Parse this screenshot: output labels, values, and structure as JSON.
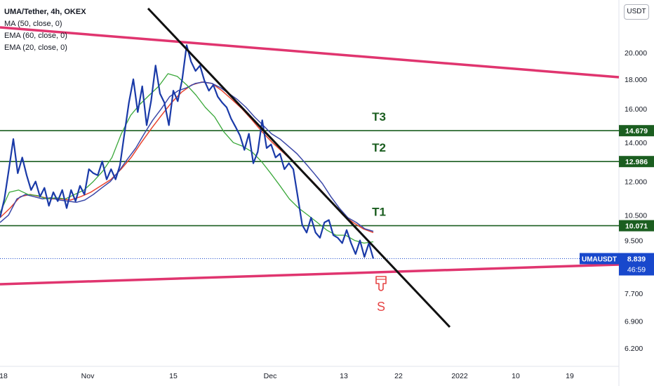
{
  "legend": {
    "title": "UMA/Tether, 4h, OKEX",
    "ma50": "MA (50, close, 0)",
    "ema60": "EMA (60, close, 0)",
    "ema20": "EMA (20, close, 0)"
  },
  "unit_badge": "USDT",
  "colors": {
    "price": "#1a3aa8",
    "ma50": "#3b48a8",
    "ema60": "#e8432e",
    "ema20": "#3aa83a",
    "channel": "#e0356f",
    "trendline": "#111111",
    "target_line": "#1b5e20",
    "target_label_bg": "#1b5e20",
    "current_label_bg": "#1848cc",
    "signal_red": "#e64545"
  },
  "chart_data": {
    "type": "line",
    "title": "UMA/Tether, 4h, OKEX",
    "y_scale": "log",
    "ylim": [
      5.55,
      24.0
    ],
    "y_ticks": [
      20.0,
      18.0,
      16.0,
      14.0,
      12.0,
      10.5,
      9.5,
      7.7,
      6.9,
      6.2
    ],
    "y_tick_labels": [
      "20.000",
      "18.000",
      "16.000",
      "14.000",
      "12.000",
      "10.500",
      "9.500",
      "7.700",
      "6.900",
      "6.200"
    ],
    "x_tick_labels": [
      "18",
      "Nov",
      "15",
      "Dec",
      "13",
      "22",
      "2022",
      "10",
      "19"
    ],
    "price_series": {
      "name": "UMAUSDT",
      "values": [
        10.4,
        11.2,
        12.6,
        14.2,
        12.4,
        13.2,
        12.3,
        11.6,
        12.0,
        11.3,
        11.7,
        10.9,
        11.5,
        11.1,
        11.6,
        10.8,
        11.6,
        11.1,
        11.8,
        11.4,
        12.6,
        12.4,
        12.3,
        13.0,
        12.1,
        12.6,
        12.1,
        12.8,
        14.5,
        16.4,
        18.0,
        15.8,
        17.5,
        15.0,
        16.5,
        19.0,
        17.0,
        16.4,
        15.0,
        17.2,
        16.5,
        18.0,
        20.6,
        19.3,
        18.6,
        19.0,
        17.9,
        17.2,
        17.6,
        16.8,
        16.4,
        16.1,
        15.4,
        14.9,
        14.4,
        13.6,
        14.5,
        12.9,
        13.5,
        15.3,
        13.7,
        13.9,
        13.2,
        13.4,
        12.6,
        12.9,
        12.6,
        11.3,
        10.1,
        9.8,
        10.4,
        9.8,
        9.6,
        10.2,
        10.3,
        9.7,
        9.6,
        9.4,
        9.9,
        9.4,
        9.0,
        9.5,
        8.9,
        9.4,
        8.84
      ],
      "last": 8.839
    },
    "ma50_values": [
      10.2,
      10.5,
      11.2,
      11.4,
      11.3,
      11.2,
      11.25,
      11.15,
      11.1,
      11.05,
      11.15,
      11.4,
      11.7,
      12.0,
      12.5,
      13.1,
      13.7,
      14.5,
      15.3,
      16.0,
      16.8,
      17.2,
      17.4,
      17.7,
      17.8,
      17.7,
      17.4,
      17.0,
      16.6,
      16.1,
      15.5,
      15.0,
      14.5,
      14.2,
      13.8,
      13.4,
      12.9,
      12.4,
      11.9,
      11.3,
      10.8,
      10.4,
      10.2,
      9.95,
      9.85
    ],
    "ema60_values": [
      10.4,
      10.8,
      11.3,
      11.4,
      11.3,
      11.2,
      11.2,
      11.15,
      11.3,
      11.5,
      11.8,
      12.1,
      12.6,
      13.2,
      14.0,
      14.8,
      15.6,
      16.4,
      17.1,
      17.6,
      17.8,
      17.7,
      17.2,
      16.6,
      16.0,
      15.3,
      14.6,
      14.0,
      13.5,
      13.0,
      12.5,
      12.0,
      11.5,
      11.0,
      10.5,
      10.2,
      9.95,
      9.8
    ],
    "ema20_values": [
      10.6,
      11.5,
      11.6,
      11.4,
      11.35,
      11.2,
      11.25,
      11.2,
      11.4,
      11.6,
      12.0,
      12.5,
      13.2,
      14.5,
      15.6,
      16.3,
      16.9,
      17.5,
      18.4,
      18.2,
      17.6,
      16.9,
      16.1,
      15.5,
      14.6,
      14.0,
      13.8,
      13.5,
      13.0,
      12.4,
      11.8,
      11.2,
      10.8,
      10.5,
      10.2,
      9.9,
      9.7,
      9.7,
      9.5,
      9.4,
      9.45
    ],
    "horizontal_levels": [
      {
        "label": "T3",
        "value": 14.679,
        "value_label": "14.679"
      },
      {
        "label": "T2",
        "value": 12.986,
        "value_label": "12.986"
      },
      {
        "label": "T1",
        "value": 10.071,
        "value_label": "10.071"
      }
    ],
    "current_price": {
      "symbol": "UMAUSDT",
      "value_label": "8.839",
      "countdown": "46:59"
    },
    "annotation_text": "S"
  }
}
